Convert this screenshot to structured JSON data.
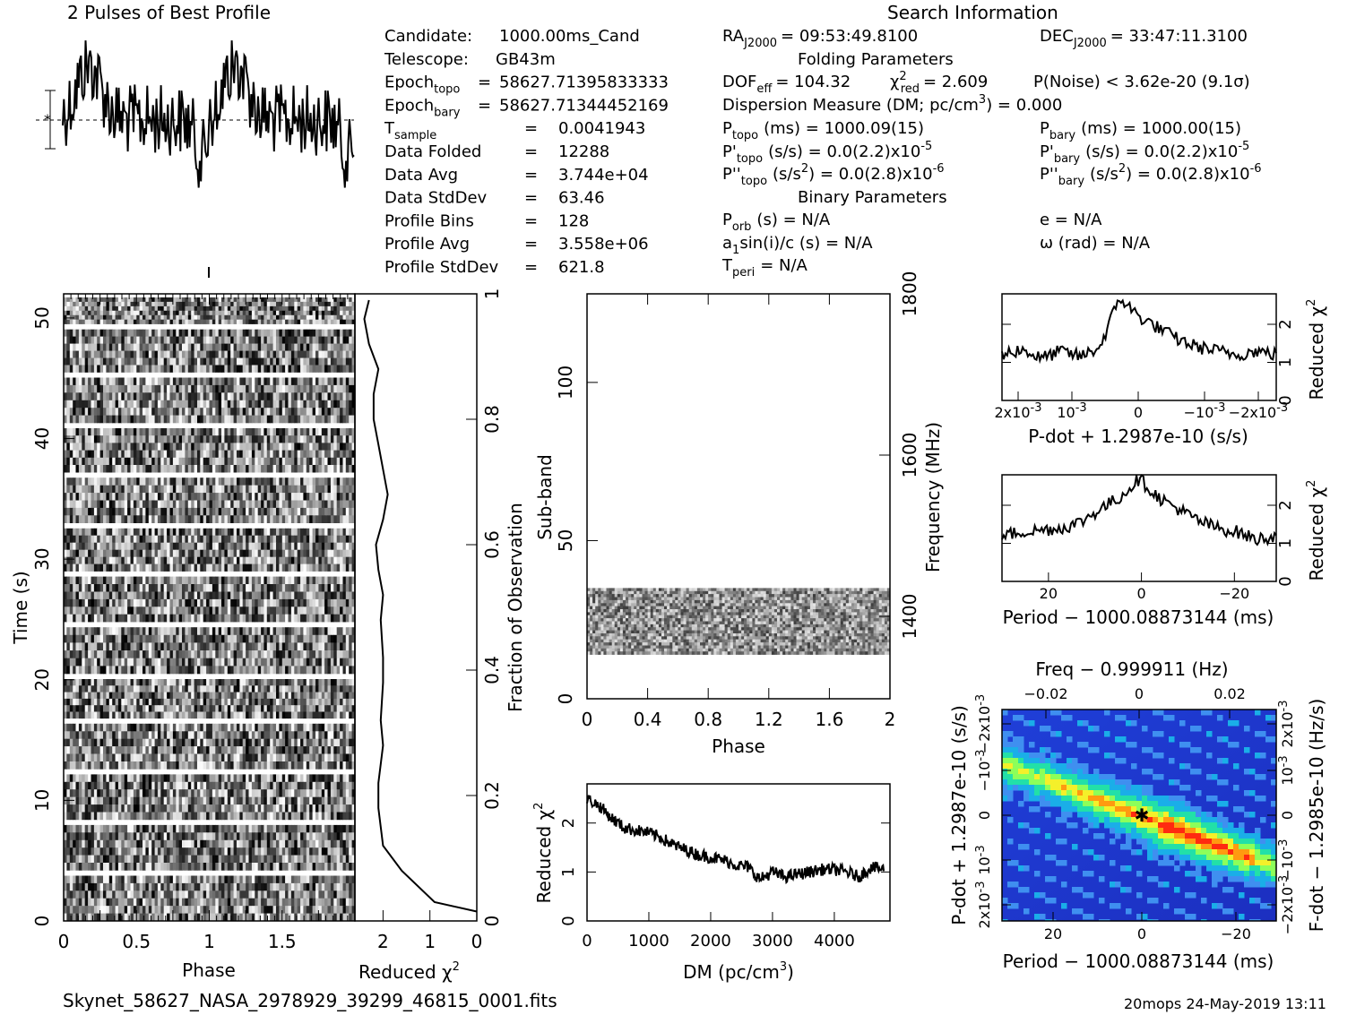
{
  "header": {
    "profile_title": "2 Pulses of Best Profile",
    "search_title": "Search Information",
    "folding_title": "Folding Parameters",
    "binary_title": "Binary Parameters"
  },
  "info_left": [
    {
      "label": "Candidate:",
      "sub": "",
      "sep": "",
      "value": "1000.00ms_Cand"
    },
    {
      "label": "Telescope:",
      "sub": "",
      "sep": "",
      "value": "GB43m"
    },
    {
      "label": "Epoch",
      "sub": "topo",
      "sep": "=",
      "value": "58627.71395833333"
    },
    {
      "label": "Epoch",
      "sub": "bary",
      "sep": "=",
      "value": "58627.71344452169"
    },
    {
      "label": "T",
      "sub": "sample",
      "sep": "=",
      "value": "0.0041943"
    },
    {
      "label": "Data Folded",
      "sub": "",
      "sep": "=",
      "value": "12288"
    },
    {
      "label": "Data Avg",
      "sub": "",
      "sep": "=",
      "value": "3.744e+04"
    },
    {
      "label": "Data StdDev",
      "sub": "",
      "sep": "=",
      "value": "63.46"
    },
    {
      "label": "Profile Bins",
      "sub": "",
      "sep": "=",
      "value": "128"
    },
    {
      "label": "Profile Avg",
      "sub": "",
      "sep": "=",
      "value": "3.558e+06"
    },
    {
      "label": "Profile StdDev",
      "sub": "",
      "sep": "=",
      "value": "621.8"
    }
  ],
  "info_mid": {
    "ra": {
      "label": "RA",
      "sub": "J2000",
      "value": "= 09:53:49.8100"
    },
    "dec": {
      "label": "DEC",
      "sub": "J2000",
      "value": "= 33:47:11.3100"
    },
    "dof": {
      "label": "DOF",
      "sub": "eff",
      "value": "= 104.32"
    },
    "chi": {
      "label": "χ",
      "sup": "2",
      "sub": "red",
      "value": "= 2.609"
    },
    "pnoise": "P(Noise) < 3.62e-20  (9.1σ)",
    "dm": "Dispersion Measure (DM; pc/cm",
    "dm_sup": "3",
    "dm_value": ") = 0.000",
    "ptopo": {
      "label": "P",
      "sub": "topo",
      "value": "(ms) =  1000.09(15)"
    },
    "pbary": {
      "label": "P",
      "sub": "bary",
      "value": "(ms) =  1000.00(15)"
    },
    "pdtopo": {
      "label": "P'",
      "sub": "topo",
      "value": "(s/s) = 0.0(2.2)x10",
      "exp": "-5"
    },
    "pdbary": {
      "label": "P'",
      "sub": "bary",
      "value": "(s/s) = 0.0(2.2)x10",
      "exp": "-5"
    },
    "pddtopo": {
      "label": "P''",
      "sub": "topo",
      "value": "(s/s",
      "sup": "2",
      "value2": ") = 0.0(2.8)x10",
      "exp": "-6"
    },
    "pddbary": {
      "label": "P''",
      "sub": "bary",
      "value": "(s/s",
      "sup": "2",
      "value2": ") = 0.0(2.8)x10",
      "exp": "-6"
    },
    "porb": {
      "label": "P",
      "sub": "orb",
      "value": "(s) = N/A"
    },
    "a1": {
      "label": "a",
      "sub": "1",
      "value": "sin(i)/c (s) = N/A"
    },
    "tperi": {
      "label": "T",
      "sub": "peri",
      "value": "= N/A"
    },
    "e": "e = N/A",
    "omega": "ω (rad) = N/A"
  },
  "footer": {
    "filename": "Skynet_58627_NASA_2978929_39299_46815_0001.fits",
    "stamp": "20mops 24-May-2019 13:11"
  },
  "chart_data": [
    {
      "id": "profile",
      "type": "line",
      "title": "2 Pulses of Best Profile",
      "x_range": [
        0,
        2
      ],
      "note": "two repeats of 128-bin pulse profile (noisy)"
    },
    {
      "id": "time_phase",
      "type": "heatmap",
      "xlabel": "Phase",
      "ylabel": "Time (s)",
      "xlim": [
        0,
        2
      ],
      "ylim": [
        0,
        52
      ],
      "xticks": [
        "0",
        "0.5",
        "1",
        "1.5"
      ],
      "yticks": [
        "0",
        "10",
        "20",
        "30",
        "40",
        "50"
      ],
      "colormap": "grayscale",
      "gap_times": [
        4.2,
        8.4,
        12.6,
        16.8,
        20.5,
        24.8,
        29.0,
        33.0,
        37.2,
        41.3,
        45.5,
        49.5
      ]
    },
    {
      "id": "chi_vs_time",
      "type": "line",
      "xlabel": "Reduced χ",
      "xlabel_sup": "2",
      "ylabel": "Fraction of Observation",
      "xlim": [
        2.6,
        0
      ],
      "ylim": [
        0,
        1
      ],
      "xticks": [
        "2",
        "1",
        "0"
      ],
      "yticks": [
        "0",
        "0.2",
        "0.4",
        "0.6",
        "0.8",
        "1"
      ],
      "x": [
        0,
        0.9,
        1.6,
        2.0,
        2.1,
        2.1,
        2.0,
        2.05,
        2.0,
        2.0,
        2.05,
        2.0,
        2.1,
        2.15,
        2.0,
        1.9,
        2.0,
        2.1,
        2.2,
        2.2,
        2.1,
        2.3,
        2.4,
        2.3
      ],
      "y": [
        0.015,
        0.03,
        0.08,
        0.12,
        0.18,
        0.22,
        0.28,
        0.32,
        0.38,
        0.42,
        0.48,
        0.52,
        0.56,
        0.6,
        0.64,
        0.68,
        0.72,
        0.76,
        0.8,
        0.84,
        0.88,
        0.92,
        0.96,
        0.99
      ]
    },
    {
      "id": "subband_phase",
      "type": "heatmap",
      "xlabel": "Phase",
      "ylabel": "Sub-band",
      "y2label": "Frequency (MHz)",
      "xlim": [
        0,
        2
      ],
      "ylim": [
        0,
        128
      ],
      "xticks": [
        "0",
        "0.4",
        "0.8",
        "1.2",
        "1.6",
        "2"
      ],
      "yticks": [
        "0",
        "50",
        "100"
      ],
      "y2ticks": [
        "1400",
        "1600",
        "1800"
      ],
      "data_band": [
        14,
        35
      ],
      "colormap": "grayscale"
    },
    {
      "id": "dm_curve",
      "type": "line",
      "xlabel": "DM (pc/cm",
      "xlabel_sup": "3",
      "xlabel_end": ")",
      "ylabel": "Reduced χ",
      "ylabel_sup": "2",
      "xlim": [
        0,
        4900
      ],
      "ylim": [
        0,
        2.8
      ],
      "xticks": [
        "0",
        "1000",
        "2000",
        "3000",
        "4000"
      ],
      "yticks": [
        "0",
        "1",
        "2"
      ],
      "x": [
        0,
        200,
        400,
        600,
        800,
        1000,
        1200,
        1400,
        1600,
        1800,
        2000,
        2200,
        2400,
        2600,
        2800,
        3000,
        3200,
        3400,
        3600,
        3800,
        4000,
        4200,
        4400,
        4600,
        4800
      ],
      "y": [
        2.5,
        2.35,
        2.1,
        1.9,
        1.85,
        1.8,
        1.7,
        1.55,
        1.45,
        1.35,
        1.3,
        1.25,
        1.15,
        1.1,
        0.85,
        1.0,
        0.9,
        0.95,
        1.0,
        1.05,
        1.05,
        1.0,
        0.9,
        1.1,
        1.05
      ]
    },
    {
      "id": "pdot_curve",
      "type": "line",
      "xlabel": "P-dot + 1.2987e-10 (s/s)",
      "ylabel": "Reduced χ",
      "ylabel_sup": "2",
      "xlim": [
        0.0023,
        -0.003
      ],
      "ylim": [
        0,
        2.8
      ],
      "xticks": [
        "2x10",
        "10",
        "0",
        "−10",
        "−2x10"
      ],
      "xtick_sup": "-3",
      "yticks": [
        "0",
        "1",
        "2"
      ],
      "x": [
        0.0023,
        0.0018,
        0.0013,
        0.0008,
        0.0004,
        0.0002,
        0,
        -0.0002,
        -0.0005,
        -0.0008,
        -0.0012,
        -0.0016,
        -0.002,
        -0.0025,
        -0.003
      ],
      "y": [
        1.2,
        1.35,
        1.1,
        1.3,
        1.15,
        1.4,
        2.7,
        2.2,
        1.9,
        1.6,
        1.4,
        1.3,
        1.2,
        1.3,
        1.2
      ]
    },
    {
      "id": "period_curve",
      "type": "line",
      "xlabel": "Period − 1000.08873144 (ms)",
      "ylabel": "Reduced χ",
      "ylabel_sup": "2",
      "xlim": [
        30,
        -29
      ],
      "ylim": [
        0,
        2.8
      ],
      "xticks": [
        "20",
        "0",
        "−20"
      ],
      "yticks": [
        "0",
        "1",
        "2"
      ],
      "x": [
        30,
        25,
        20,
        15,
        10,
        6,
        3,
        0,
        -3,
        -6,
        -10,
        -15,
        -20,
        -25,
        -29
      ],
      "y": [
        1.2,
        1.3,
        1.35,
        1.4,
        1.55,
        1.9,
        2.2,
        2.7,
        2.2,
        1.9,
        1.6,
        1.4,
        1.3,
        1.1,
        1.2
      ]
    },
    {
      "id": "period_pdot",
      "type": "heatmap",
      "title": "Freq − 0.999911 (Hz)",
      "xlabel": "Period − 1000.08873144 (ms)",
      "ylabel": "P-dot + 1.2987e-10 (s/s)",
      "y2label": "F-dot − 1.2985e-10 (Hz/s)",
      "xticks": [
        "20",
        "0",
        "−20"
      ],
      "x2ticks": [
        "−0.02",
        "0",
        "0.02"
      ],
      "yticks": [
        "2x10",
        "10",
        "0",
        "−10",
        "−2x10"
      ],
      "ytick_sup": "-3",
      "y2ticks": [
        "−2x10",
        "−10",
        "0",
        "10",
        "2x10"
      ],
      "y2tick_sup": "-3",
      "colormap": "jet",
      "best_point": [
        0,
        0
      ]
    }
  ]
}
